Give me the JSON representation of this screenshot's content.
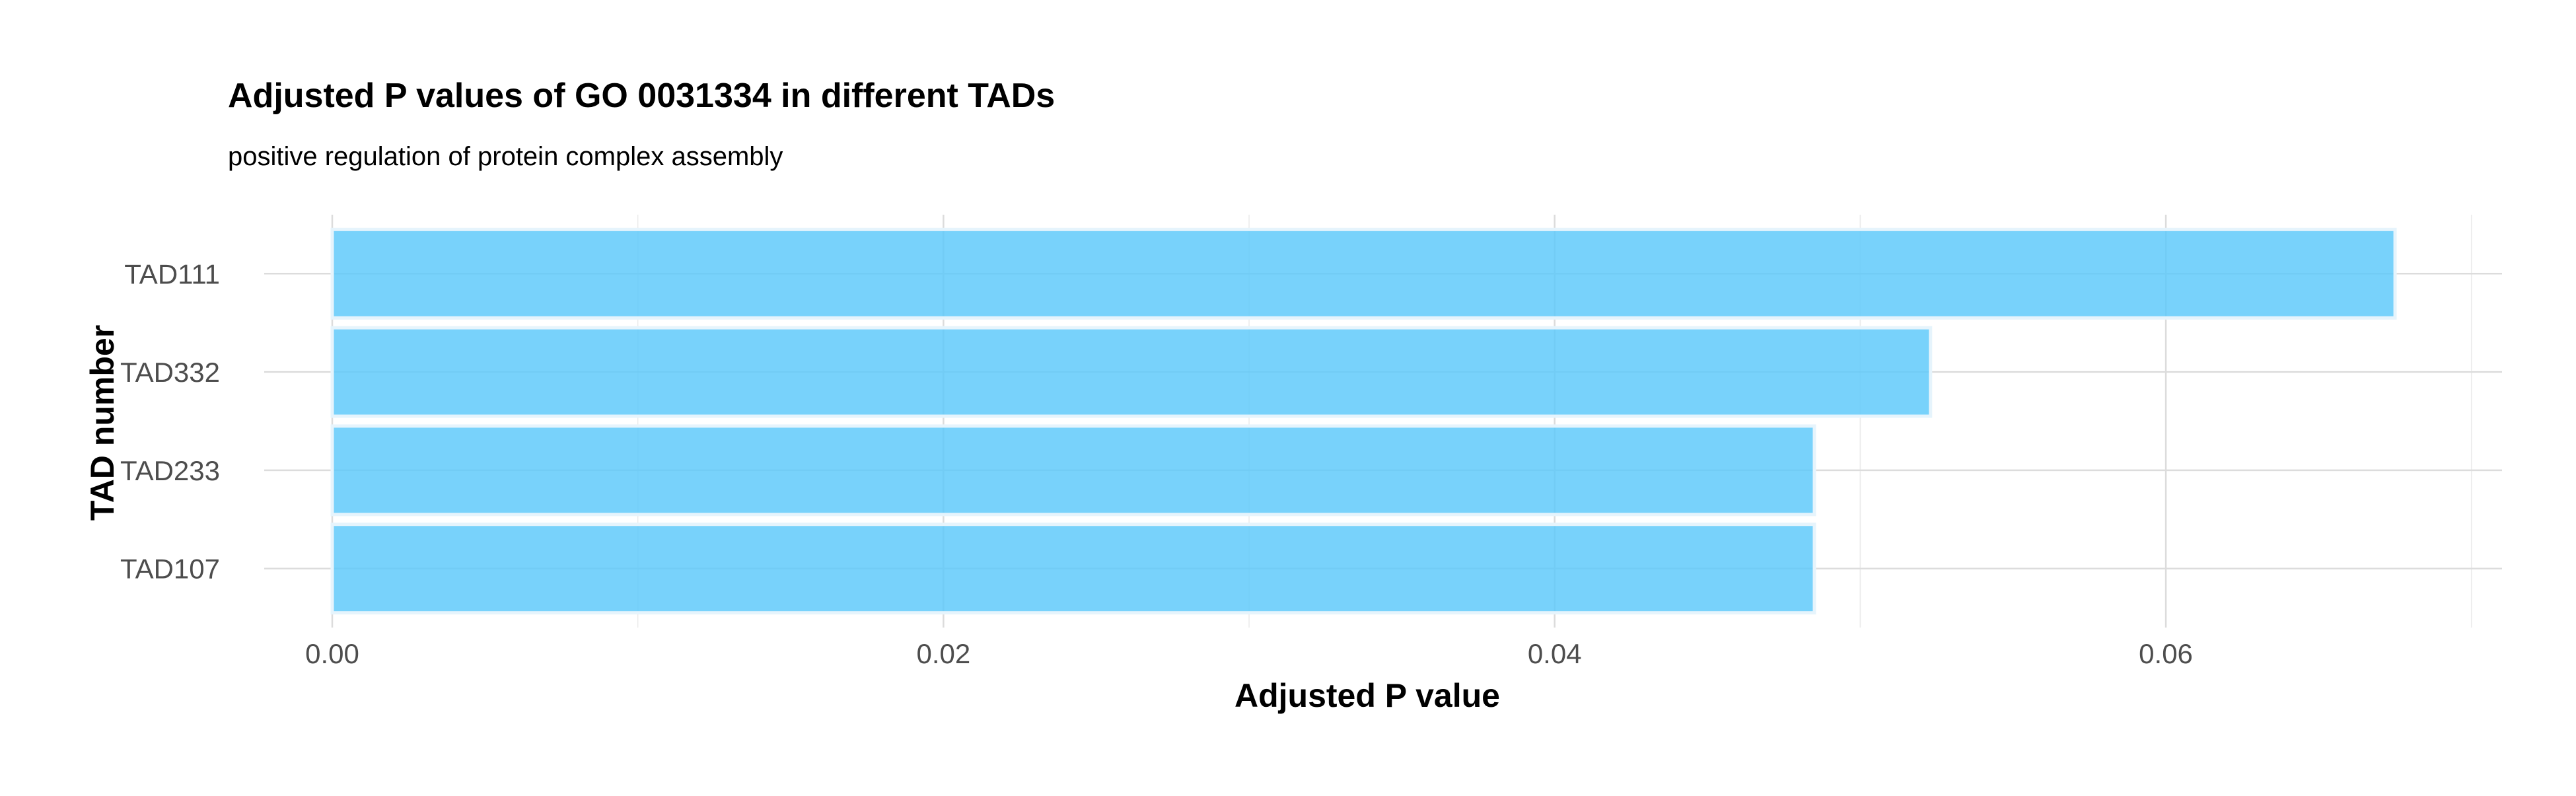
{
  "chart_data": {
    "type": "bar",
    "orientation": "horizontal",
    "title": "Adjusted P values of GO 0031334 in different TADs",
    "subtitle": "positive regulation of protein complex assembly",
    "xlabel": "Adjusted P value",
    "ylabel": "TAD number",
    "categories": [
      "TAD111",
      "TAD332",
      "TAD233",
      "TAD107"
    ],
    "values": [
      0.0675,
      0.0523,
      0.0485,
      0.0485
    ],
    "xlim": [
      0,
      0.071
    ],
    "x_ticks": [
      0.0,
      0.02,
      0.04,
      0.06
    ],
    "x_tick_labels": [
      "0.00",
      "0.02",
      "0.04",
      "0.06"
    ],
    "grid": true,
    "legend": "none",
    "bar_color": "#5ac8fa",
    "bar_edge_color": "#e6f4fc"
  }
}
